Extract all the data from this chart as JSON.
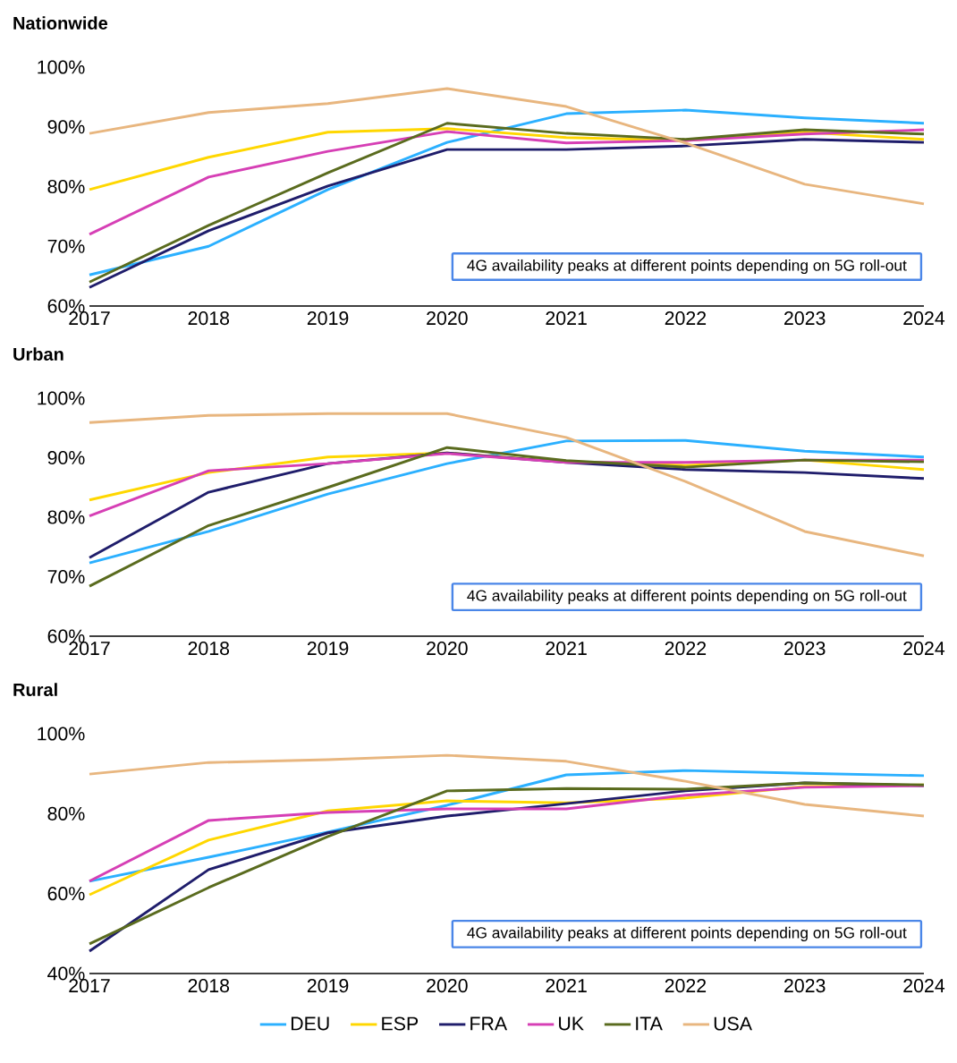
{
  "chart_data": [
    {
      "type": "line",
      "title": "Nationwide",
      "x": [
        2017,
        2018,
        2019,
        2020,
        2021,
        2022,
        2023,
        2024
      ],
      "xlim": [
        2017,
        2024
      ],
      "xticks": [
        2017,
        2018,
        2019,
        2020,
        2021,
        2022,
        2023,
        2024
      ],
      "ylim": [
        60,
        100
      ],
      "yticks": [
        {
          "value": 60,
          "label": "60%"
        },
        {
          "value": 70,
          "label": "70%"
        },
        {
          "value": 80,
          "label": "80%"
        },
        {
          "value": 90,
          "label": "90%"
        },
        {
          "value": 100,
          "label": "100%"
        }
      ],
      "marker": "none",
      "annotations": [
        "4G availability peaks at different points depending on 5G roll-out"
      ],
      "series": [
        {
          "color": "#2bb0ff",
          "values": [
            65.2,
            70.0,
            79.5,
            87.4,
            92.2,
            92.8,
            91.5,
            90.6
          ]
        },
        {
          "color": "#ffd700",
          "values": [
            79.5,
            84.9,
            89.1,
            89.7,
            88.2,
            87.7,
            89.1,
            87.9
          ]
        },
        {
          "color": "#1f1d6b",
          "values": [
            63.1,
            72.6,
            80.1,
            86.2,
            86.2,
            86.8,
            87.9,
            87.4
          ]
        },
        {
          "color": "#d63fb5",
          "values": [
            72.0,
            81.6,
            85.9,
            89.2,
            87.3,
            87.7,
            88.8,
            89.5
          ]
        },
        {
          "color": "#5a6b1e",
          "values": [
            64.0,
            73.5,
            82.3,
            90.6,
            88.9,
            87.9,
            89.5,
            88.8
          ]
        },
        {
          "color": "#e8b67f",
          "values": [
            88.9,
            92.4,
            93.9,
            96.4,
            93.4,
            87.3,
            80.4,
            77.1
          ]
        }
      ]
    },
    {
      "type": "line",
      "title": "Urban",
      "x": [
        2017,
        2018,
        2019,
        2020,
        2021,
        2022,
        2023,
        2024
      ],
      "xlim": [
        2017,
        2024
      ],
      "xticks": [
        2017,
        2018,
        2019,
        2020,
        2021,
        2022,
        2023,
        2024
      ],
      "ylim": [
        60,
        100
      ],
      "yticks": [
        {
          "value": 60,
          "label": "60%"
        },
        {
          "value": 70,
          "label": "70%"
        },
        {
          "value": 80,
          "label": "80%"
        },
        {
          "value": 90,
          "label": "90%"
        },
        {
          "value": 100,
          "label": "100%"
        }
      ],
      "marker": "none",
      "annotations": [
        "4G availability peaks at different points depending on 5G roll-out"
      ],
      "series": [
        {
          "color": "#2bb0ff",
          "values": [
            72.3,
            77.6,
            83.9,
            89.0,
            92.8,
            92.9,
            91.1,
            90.1
          ]
        },
        {
          "color": "#ffd700",
          "values": [
            82.9,
            87.5,
            90.1,
            90.8,
            89.3,
            88.7,
            89.6,
            88.0
          ]
        },
        {
          "color": "#1f1d6b",
          "values": [
            73.2,
            84.2,
            89.0,
            90.8,
            89.2,
            88.0,
            87.5,
            86.5
          ]
        },
        {
          "color": "#d63fb5",
          "values": [
            80.2,
            87.8,
            89.0,
            90.7,
            89.2,
            89.2,
            89.6,
            89.6
          ]
        },
        {
          "color": "#5a6b1e",
          "values": [
            68.4,
            78.6,
            85.0,
            91.7,
            89.5,
            88.4,
            89.6,
            89.3
          ]
        },
        {
          "color": "#e8b67f",
          "values": [
            95.9,
            97.1,
            97.4,
            97.4,
            93.4,
            86.0,
            77.6,
            73.5
          ]
        }
      ]
    },
    {
      "type": "line",
      "title": "Rural",
      "x": [
        2017,
        2018,
        2019,
        2020,
        2021,
        2022,
        2023,
        2024
      ],
      "xlim": [
        2017,
        2024
      ],
      "xticks": [
        2017,
        2018,
        2019,
        2020,
        2021,
        2022,
        2023,
        2024
      ],
      "ylim": [
        40,
        100
      ],
      "yticks": [
        {
          "value": 40,
          "label": "40%"
        },
        {
          "value": 60,
          "label": "60%"
        },
        {
          "value": 80,
          "label": "80%"
        },
        {
          "value": 100,
          "label": "100%"
        }
      ],
      "marker": "none",
      "legend": "bottom",
      "annotations": [
        "4G availability peaks at different points depending on 5G roll-out"
      ],
      "series": [
        {
          "name": "DEU",
          "color": "#2bb0ff",
          "values": [
            63.1,
            69.1,
            75.4,
            82.1,
            89.7,
            90.8,
            90.1,
            89.5
          ]
        },
        {
          "name": "ESP",
          "color": "#ffd700",
          "values": [
            59.7,
            73.4,
            80.7,
            83.2,
            82.7,
            83.9,
            86.8,
            87.2
          ]
        },
        {
          "name": "FRA",
          "color": "#1f1d6b",
          "values": [
            45.6,
            66.0,
            75.2,
            79.4,
            82.5,
            85.7,
            87.7,
            87.0
          ]
        },
        {
          "name": "UK",
          "color": "#d63fb5",
          "values": [
            63.1,
            78.3,
            80.3,
            81.2,
            81.2,
            84.6,
            86.6,
            87.0
          ]
        },
        {
          "name": "ITA",
          "color": "#5a6b1e",
          "values": [
            47.4,
            61.5,
            74.3,
            85.7,
            86.3,
            86.1,
            87.7,
            87.2
          ]
        },
        {
          "name": "USA",
          "color": "#e8b67f",
          "values": [
            89.9,
            92.8,
            93.5,
            94.6,
            93.1,
            88.1,
            82.3,
            79.4
          ]
        }
      ]
    }
  ]
}
